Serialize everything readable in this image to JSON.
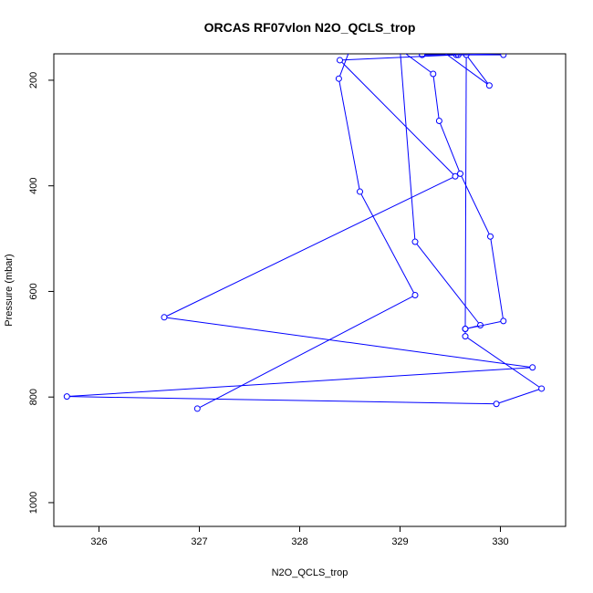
{
  "chart_data": {
    "type": "line",
    "title": "ORCAS RF07vlon N2O_QCLS_trop",
    "xlabel": "N2O_QCLS_trop",
    "ylabel": "Pressure (mbar)",
    "xlim": [
      325.55,
      330.65
    ],
    "ylim": [
      1045,
      150
    ],
    "y_reversed": true,
    "x_ticks": [
      326,
      327,
      328,
      329,
      330
    ],
    "y_ticks": [
      200,
      400,
      600,
      800,
      1000
    ],
    "grid": false,
    "line_style": "lines-with-open-circles",
    "series": [
      {
        "color": "#0000ff",
        "points": [
          [
            326.98,
            822
          ],
          [
            329.15,
            607
          ],
          [
            328.6,
            411
          ],
          [
            328.39,
            197
          ],
          [
            328.5,
            142
          ],
          [
            330.03,
            152
          ],
          [
            329.22,
            152
          ],
          [
            329.58,
            152
          ],
          [
            329.22,
            152
          ],
          [
            329.56,
            152
          ],
          [
            328.4,
            162
          ],
          [
            329.55,
            382
          ],
          [
            326.65,
            649
          ],
          [
            330.32,
            744
          ],
          [
            325.68,
            799
          ],
          [
            329.96,
            813
          ],
          [
            330.41,
            784
          ],
          [
            329.65,
            685
          ],
          [
            329.65,
            671
          ],
          [
            329.8,
            664
          ],
          [
            329.15,
            506
          ],
          [
            329.0,
            142
          ],
          [
            329.33,
            188
          ],
          [
            329.39,
            277
          ],
          [
            329.6,
            377
          ],
          [
            329.9,
            496
          ],
          [
            330.03,
            656
          ],
          [
            329.65,
            671
          ],
          [
            329.66,
            152
          ],
          [
            329.89,
            210
          ],
          [
            329.4,
            142
          ]
        ]
      }
    ]
  }
}
